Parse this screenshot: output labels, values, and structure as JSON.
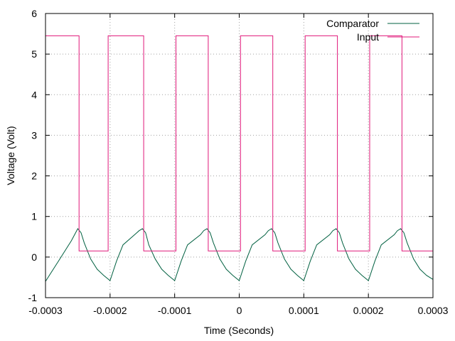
{
  "chart_data": {
    "type": "line",
    "xlabel": "Time (Seconds)",
    "ylabel": "Voltage (Volt)",
    "xlim": [
      -0.0003,
      0.0003
    ],
    "ylim": [
      -1,
      6
    ],
    "x_ticks": [
      "-0.0003",
      "-0.0002",
      "-0.0001",
      "0",
      "0.0001",
      "0.0002",
      "0.0003"
    ],
    "y_ticks": [
      "-1",
      "0",
      "1",
      "2",
      "3",
      "4",
      "5",
      "6"
    ],
    "grid": true,
    "legend_position": "top-right",
    "series": [
      {
        "name": "Comparator",
        "color": "#006040",
        "x": [
          -0.0003,
          -0.00028,
          -0.00026,
          -0.000255,
          -0.00025,
          -0.000245,
          -0.00024,
          -0.00023,
          -0.00022,
          -0.00021,
          -0.0002,
          -0.00019,
          -0.00018,
          -0.00016,
          -0.000155,
          -0.00015,
          -0.000145,
          -0.00014,
          -0.00013,
          -0.00012,
          -0.00011,
          -0.0001,
          -9e-05,
          -8e-05,
          -6e-05,
          -5.5e-05,
          -5e-05,
          -4.5e-05,
          -4e-05,
          -3e-05,
          -2e-05,
          -1e-05,
          0.0,
          1e-05,
          2e-05,
          4e-05,
          4.5e-05,
          5e-05,
          5.5e-05,
          6e-05,
          7e-05,
          8e-05,
          9e-05,
          0.0001,
          0.00011,
          0.00012,
          0.00014,
          0.000145,
          0.00015,
          0.000155,
          0.00016,
          0.00017,
          0.00018,
          0.00019,
          0.0002,
          0.00021,
          0.00022,
          0.00024,
          0.000245,
          0.00025,
          0.000255,
          0.00026,
          0.00027,
          0.00028,
          0.00029,
          0.0003
        ],
        "y": [
          -0.6,
          -0.1,
          0.4,
          0.55,
          0.7,
          0.6,
          0.35,
          -0.05,
          -0.3,
          -0.45,
          -0.58,
          -0.1,
          0.3,
          0.58,
          0.65,
          0.7,
          0.6,
          0.3,
          -0.05,
          -0.3,
          -0.45,
          -0.58,
          -0.1,
          0.3,
          0.55,
          0.65,
          0.7,
          0.6,
          0.35,
          -0.05,
          -0.3,
          -0.45,
          -0.58,
          -0.1,
          0.3,
          0.55,
          0.65,
          0.7,
          0.6,
          0.35,
          -0.05,
          -0.3,
          -0.45,
          -0.58,
          -0.1,
          0.3,
          0.55,
          0.65,
          0.7,
          0.6,
          0.35,
          -0.05,
          -0.3,
          -0.45,
          -0.58,
          -0.1,
          0.3,
          0.55,
          0.65,
          0.7,
          0.6,
          0.35,
          -0.05,
          -0.3,
          -0.45,
          -0.55
        ]
      },
      {
        "name": "Input",
        "color": "#e0187a",
        "x": [
          -0.0003,
          -0.000248,
          -0.000248,
          -0.000203,
          -0.000203,
          -0.000148,
          -0.000148,
          -9.8e-05,
          -9.8e-05,
          -4.8e-05,
          -4.8e-05,
          2e-06,
          2e-06,
          5.2e-05,
          5.2e-05,
          0.000102,
          0.000102,
          0.000152,
          0.000152,
          0.000202,
          0.000202,
          0.000252,
          0.000252,
          0.0003
        ],
        "y": [
          5.45,
          5.45,
          0.15,
          0.15,
          5.45,
          5.45,
          0.15,
          0.15,
          5.45,
          5.45,
          0.15,
          0.15,
          5.45,
          5.45,
          0.15,
          0.15,
          5.45,
          5.45,
          0.15,
          0.15,
          5.45,
          5.45,
          0.15,
          0.15
        ]
      }
    ]
  }
}
